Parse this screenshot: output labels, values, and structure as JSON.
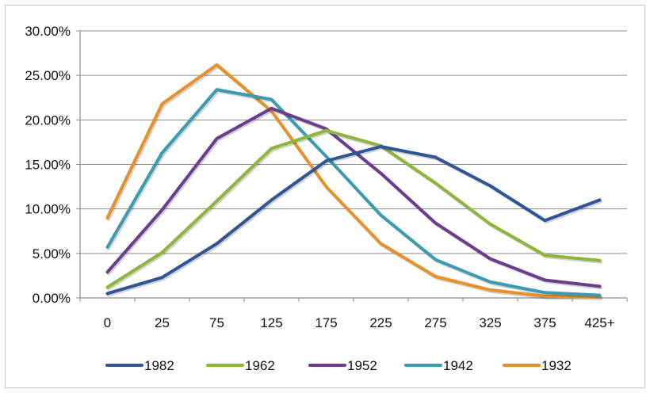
{
  "chart_data": {
    "type": "line",
    "title": "",
    "xlabel": "",
    "ylabel": "",
    "categories": [
      "0",
      "25",
      "75",
      "125",
      "175",
      "225",
      "275",
      "325",
      "375",
      "425+"
    ],
    "y_ticks": [
      "0.00%",
      "5.00%",
      "10.00%",
      "15.00%",
      "20.00%",
      "25.00%",
      "30.00%"
    ],
    "ylim": [
      0,
      30
    ],
    "grid": true,
    "legend_position": "bottom",
    "series": [
      {
        "name": "1982",
        "color": "#2f5597",
        "values": [
          0.5,
          2.3,
          6.1,
          11.0,
          15.4,
          17.0,
          15.8,
          12.6,
          8.7,
          11.0
        ]
      },
      {
        "name": "1962",
        "color": "#8db63c",
        "values": [
          1.2,
          5.1,
          10.9,
          16.8,
          18.8,
          17.1,
          12.9,
          8.3,
          4.8,
          4.2
        ]
      },
      {
        "name": "1952",
        "color": "#6a3d8f",
        "values": [
          2.9,
          9.9,
          17.9,
          21.3,
          19.0,
          14.0,
          8.4,
          4.4,
          2.0,
          1.3
        ]
      },
      {
        "name": "1942",
        "color": "#3a9bb2",
        "values": [
          5.7,
          16.3,
          23.4,
          22.3,
          15.9,
          9.3,
          4.3,
          1.8,
          0.6,
          0.3
        ]
      },
      {
        "name": "1932",
        "color": "#e8902c",
        "values": [
          9.0,
          21.8,
          26.2,
          21.0,
          12.5,
          6.1,
          2.4,
          0.9,
          0.2,
          0.1
        ]
      }
    ]
  }
}
